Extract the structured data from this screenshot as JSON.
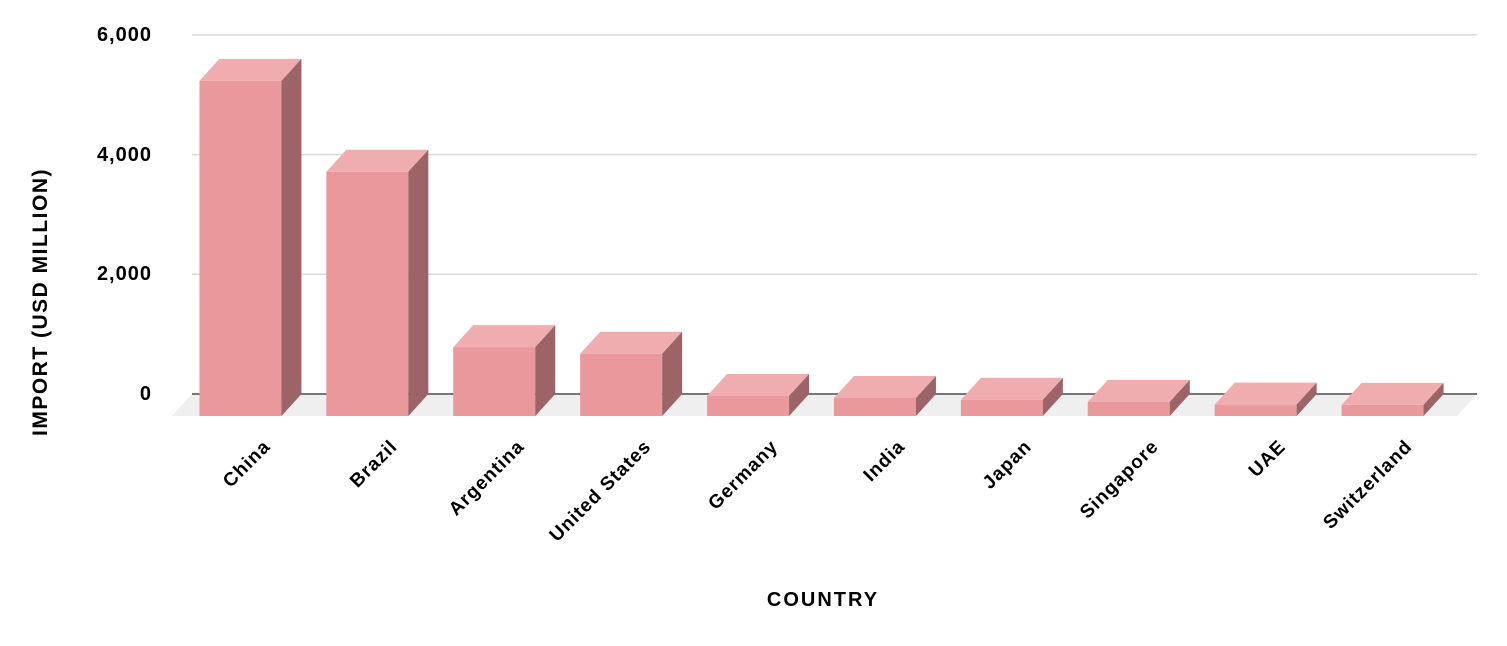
{
  "chart_data": {
    "type": "bar",
    "style": "3d-column",
    "title": "",
    "xlabel": "COUNTRY",
    "ylabel": "IMPORT (USD MILLION)",
    "categories": [
      "China",
      "Brazil",
      "Argentina",
      "United States",
      "Germany",
      "India",
      "Japan",
      "Singapore",
      "UAE",
      "Switzerland"
    ],
    "values": [
      5600,
      4080,
      1150,
      1040,
      335,
      300,
      270,
      235,
      190,
      185
    ],
    "ylim": [
      0,
      6000
    ],
    "yticks": [
      0,
      2000,
      4000,
      6000
    ],
    "ytick_labels": [
      "0",
      "2,000",
      "4,000",
      "6,000"
    ],
    "grid": true,
    "legend": false,
    "colors": {
      "bar_front": "#E9989C",
      "bar_top": "#EFADB0",
      "bar_side": "#9C6467",
      "floor": "#EFEFEF",
      "gridline": "#D9D9D9",
      "axis_line": "#777777",
      "text": "#000000",
      "background": "#FFFFFF"
    }
  }
}
